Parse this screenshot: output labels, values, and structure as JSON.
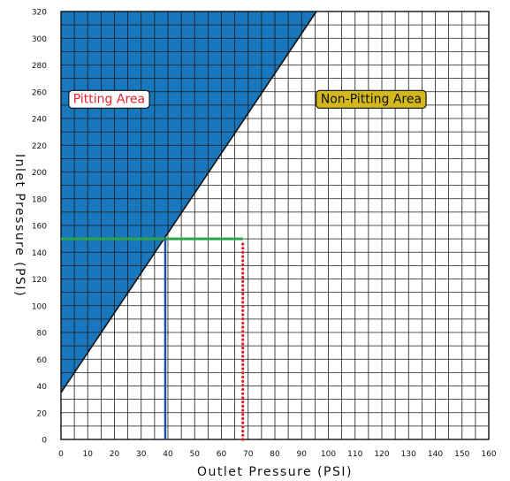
{
  "chart_data": {
    "type": "area",
    "xlabel": "Outlet Pressure (PSI)",
    "ylabel": "Inlet Pressure (PSI)",
    "xlim": [
      0,
      160
    ],
    "ylim": [
      0,
      320
    ],
    "x_ticks": [
      0,
      10,
      20,
      30,
      40,
      50,
      60,
      70,
      80,
      90,
      100,
      110,
      120,
      130,
      140,
      150,
      160
    ],
    "y_ticks": [
      0,
      20,
      40,
      60,
      80,
      100,
      120,
      140,
      160,
      180,
      200,
      220,
      240,
      260,
      280,
      300,
      320
    ],
    "grid": true,
    "grid_step": {
      "x": 5,
      "y": 10
    },
    "boundary_line": {
      "x": [
        0,
        95.5
      ],
      "y": [
        35,
        320
      ]
    },
    "regions": [
      {
        "label": "Pitting Area",
        "text_color": "#e8212b",
        "fill": "#1877bd",
        "label_at": {
          "x": 18,
          "y": 255
        }
      },
      {
        "label": "Non-Pitting Area",
        "text_color": "#111111",
        "fill": "#d4b71c",
        "label_at": {
          "x": 116,
          "y": 255
        }
      }
    ],
    "annotations": [
      {
        "kind": "hline",
        "color": "#2aa54a",
        "y": 150,
        "x": [
          0,
          68
        ]
      },
      {
        "kind": "vline",
        "color": "#1a4fa3",
        "x": 39,
        "y": [
          0,
          150
        ]
      },
      {
        "kind": "vline-dotted",
        "color": "#e0202b",
        "x": 68,
        "y": [
          0,
          148
        ]
      }
    ]
  }
}
